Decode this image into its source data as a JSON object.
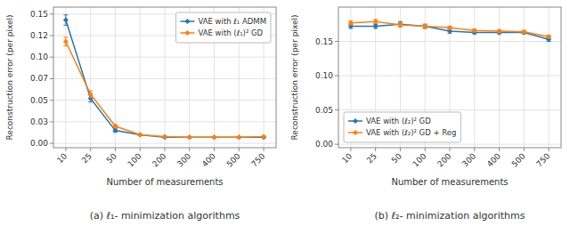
{
  "chart_data": [
    {
      "type": "line",
      "title": "(a) ℓ₁- minimization algorithms",
      "x_label": "Number of measurements",
      "y_label": "Reconstruction error (per pixel)",
      "categories": [
        "10",
        "25",
        "50",
        "100",
        "200",
        "300",
        "400",
        "500",
        "750"
      ],
      "series": [
        {
          "name": "VAE with ℓ₁ ADMM",
          "color": "#1f77b4",
          "values": [
            0.143,
            0.052,
            0.015,
            0.01,
            0.007,
            0.007,
            0.007,
            0.007,
            0.007
          ],
          "errors": [
            0.006,
            0.004,
            0.002,
            0.001,
            0.0005,
            0.0005,
            0.0005,
            0.0005,
            0.0005
          ]
        },
        {
          "name": "VAE with (ℓ₁)² GD",
          "color": "#ff7f0e",
          "values": [
            0.118,
            0.057,
            0.02,
            0.01,
            0.008,
            0.007,
            0.007,
            0.007,
            0.008
          ],
          "errors": [
            0.005,
            0.004,
            0.002,
            0.001,
            0.0005,
            0.0005,
            0.0005,
            0.0005,
            0.0005
          ]
        }
      ],
      "marker": "diamond",
      "ylim": [
        -0.005,
        0.158
      ],
      "yticks": [
        {
          "value": 0.0,
          "label": "0.00"
        },
        {
          "value": 0.025,
          "label": "0.03"
        },
        0.05,
        {
          "value": 0.075,
          "label": "0.07"
        },
        {
          "value": 0.1,
          "label": "0.10"
        },
        {
          "value": 0.125,
          "label": "0.12"
        },
        0.15
      ],
      "grid": true,
      "legend": "upper right"
    },
    {
      "type": "line",
      "title": "(b) ℓ₂- minimization algorithms",
      "x_label": "Number of measurements",
      "y_label": "Reconstruction error (per pixel)",
      "categories": [
        "10",
        "25",
        "50",
        "100",
        "200",
        "300",
        "400",
        "500",
        "750"
      ],
      "series": [
        {
          "name": "VAE with (ℓ₂)² GD",
          "color": "#1f77b4",
          "values": [
            0.172,
            0.172,
            0.175,
            0.172,
            0.165,
            0.163,
            0.163,
            0.163,
            0.153
          ],
          "errors": [
            0.003,
            0.003,
            0.004,
            0.003,
            0.003,
            0.002,
            0.002,
            0.002,
            0.003
          ]
        },
        {
          "name": "VAE with (ℓ₂)² GD + Reg",
          "color": "#ff7f0e",
          "values": [
            0.177,
            0.179,
            0.174,
            0.172,
            0.17,
            0.166,
            0.165,
            0.164,
            0.157
          ],
          "errors": [
            0.003,
            0.003,
            0.003,
            0.003,
            0.002,
            0.002,
            0.002,
            0.002,
            0.002
          ]
        }
      ],
      "marker": "diamond",
      "ylim": [
        -0.005,
        0.2
      ],
      "yticks": [
        {
          "value": 0.0,
          "label": "0.00"
        },
        0.05,
        {
          "value": 0.1,
          "label": "0.10"
        },
        0.15
      ],
      "grid": true,
      "legend": "lower left"
    }
  ]
}
